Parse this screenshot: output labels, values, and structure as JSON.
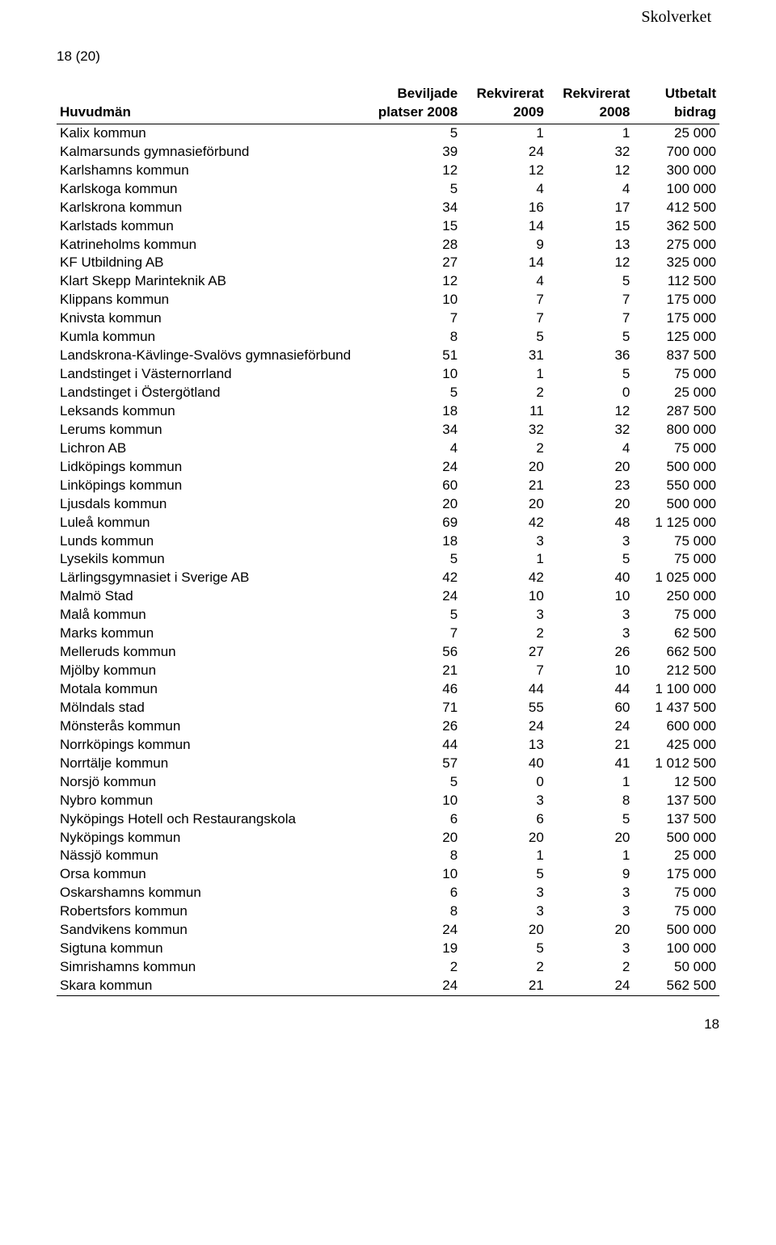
{
  "header_org": "Skolverket",
  "page_indicator": "18 (20)",
  "footer_pagenum": "18",
  "table": {
    "columns": [
      {
        "line1": "",
        "line2": "Huvudmän"
      },
      {
        "line1": "Beviljade",
        "line2": "platser 2008"
      },
      {
        "line1": "Rekvirerat",
        "line2": "2009"
      },
      {
        "line1": "Rekvirerat",
        "line2": "2008"
      },
      {
        "line1": "Utbetalt",
        "line2": "bidrag"
      }
    ],
    "rows": [
      [
        "Kalix kommun",
        "5",
        "1",
        "1",
        "25 000"
      ],
      [
        "Kalmarsunds gymnasieförbund",
        "39",
        "24",
        "32",
        "700 000"
      ],
      [
        "Karlshamns kommun",
        "12",
        "12",
        "12",
        "300 000"
      ],
      [
        "Karlskoga kommun",
        "5",
        "4",
        "4",
        "100 000"
      ],
      [
        "Karlskrona kommun",
        "34",
        "16",
        "17",
        "412 500"
      ],
      [
        "Karlstads kommun",
        "15",
        "14",
        "15",
        "362 500"
      ],
      [
        "Katrineholms kommun",
        "28",
        "9",
        "13",
        "275 000"
      ],
      [
        "KF Utbildning AB",
        "27",
        "14",
        "12",
        "325 000"
      ],
      [
        "Klart Skepp Marinteknik AB",
        "12",
        "4",
        "5",
        "112 500"
      ],
      [
        "Klippans kommun",
        "10",
        "7",
        "7",
        "175 000"
      ],
      [
        "Knivsta kommun",
        "7",
        "7",
        "7",
        "175 000"
      ],
      [
        "Kumla kommun",
        "8",
        "5",
        "5",
        "125 000"
      ],
      [
        "Landskrona-Kävlinge-Svalövs gymnasieförbund",
        "51",
        "31",
        "36",
        "837 500"
      ],
      [
        "Landstinget i Västernorrland",
        "10",
        "1",
        "5",
        "75 000"
      ],
      [
        "Landstinget i Östergötland",
        "5",
        "2",
        "0",
        "25 000"
      ],
      [
        "Leksands kommun",
        "18",
        "11",
        "12",
        "287 500"
      ],
      [
        "Lerums kommun",
        "34",
        "32",
        "32",
        "800 000"
      ],
      [
        "Lichron AB",
        "4",
        "2",
        "4",
        "75 000"
      ],
      [
        "Lidköpings kommun",
        "24",
        "20",
        "20",
        "500 000"
      ],
      [
        "Linköpings kommun",
        "60",
        "21",
        "23",
        "550 000"
      ],
      [
        "Ljusdals kommun",
        "20",
        "20",
        "20",
        "500 000"
      ],
      [
        "Luleå kommun",
        "69",
        "42",
        "48",
        "1 125 000"
      ],
      [
        "Lunds kommun",
        "18",
        "3",
        "3",
        "75 000"
      ],
      [
        "Lysekils kommun",
        "5",
        "1",
        "5",
        "75 000"
      ],
      [
        "Lärlingsgymnasiet i Sverige AB",
        "42",
        "42",
        "40",
        "1 025 000"
      ],
      [
        "Malmö Stad",
        "24",
        "10",
        "10",
        "250 000"
      ],
      [
        "Malå kommun",
        "5",
        "3",
        "3",
        "75 000"
      ],
      [
        "Marks kommun",
        "7",
        "2",
        "3",
        "62 500"
      ],
      [
        "Melleruds kommun",
        "56",
        "27",
        "26",
        "662 500"
      ],
      [
        "Mjölby kommun",
        "21",
        "7",
        "10",
        "212 500"
      ],
      [
        "Motala kommun",
        "46",
        "44",
        "44",
        "1 100 000"
      ],
      [
        "Mölndals stad",
        "71",
        "55",
        "60",
        "1 437 500"
      ],
      [
        "Mönsterås kommun",
        "26",
        "24",
        "24",
        "600 000"
      ],
      [
        "Norrköpings kommun",
        "44",
        "13",
        "21",
        "425 000"
      ],
      [
        "Norrtälje kommun",
        "57",
        "40",
        "41",
        "1 012 500"
      ],
      [
        "Norsjö kommun",
        "5",
        "0",
        "1",
        "12 500"
      ],
      [
        "Nybro kommun",
        "10",
        "3",
        "8",
        "137 500"
      ],
      [
        "Nyköpings Hotell och Restaurangskola",
        "6",
        "6",
        "5",
        "137 500"
      ],
      [
        "Nyköpings kommun",
        "20",
        "20",
        "20",
        "500 000"
      ],
      [
        "Nässjö kommun",
        "8",
        "1",
        "1",
        "25 000"
      ],
      [
        "Orsa kommun",
        "10",
        "5",
        "9",
        "175 000"
      ],
      [
        "Oskarshamns kommun",
        "6",
        "3",
        "3",
        "75 000"
      ],
      [
        "Robertsfors kommun",
        "8",
        "3",
        "3",
        "75 000"
      ],
      [
        "Sandvikens kommun",
        "24",
        "20",
        "20",
        "500 000"
      ],
      [
        "Sigtuna kommun",
        "19",
        "5",
        "3",
        "100 000"
      ],
      [
        "Simrishamns kommun",
        "2",
        "2",
        "2",
        "50 000"
      ],
      [
        "Skara kommun",
        "24",
        "21",
        "24",
        "562 500"
      ]
    ]
  }
}
